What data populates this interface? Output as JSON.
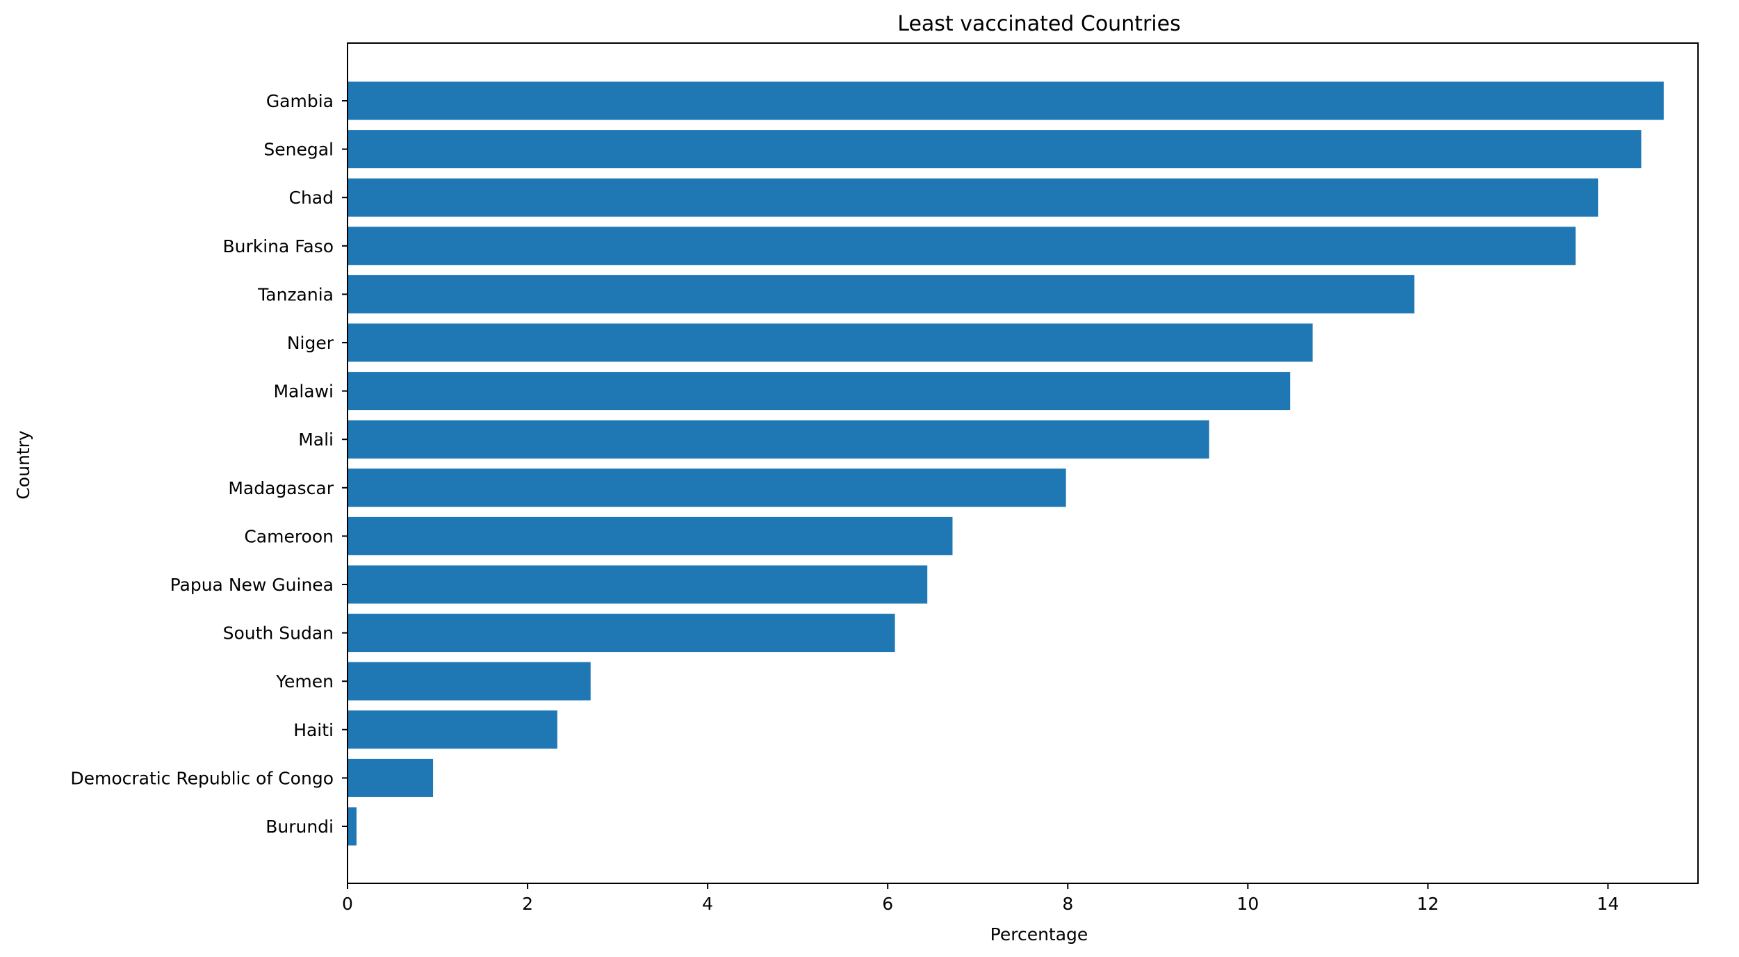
{
  "chart_data": {
    "type": "bar",
    "orientation": "horizontal",
    "title": "Least vaccinated Countries",
    "xlabel": "Percentage",
    "ylabel": "Country",
    "categories": [
      "Gambia",
      "Senegal",
      "Chad",
      "Burkina Faso",
      "Tanzania",
      "Niger",
      "Malawi",
      "Mali",
      "Madagascar",
      "Cameroon",
      "Papua New Guinea",
      "South Sudan",
      "Yemen",
      "Haiti",
      "Democratic Republic of Congo",
      "Burundi"
    ],
    "values": [
      14.62,
      14.37,
      13.89,
      13.64,
      11.85,
      10.72,
      10.47,
      9.57,
      7.98,
      6.72,
      6.44,
      6.08,
      2.7,
      2.33,
      0.95,
      0.1
    ],
    "xlim": [
      0,
      15.0
    ],
    "xticks": [
      0,
      2,
      4,
      6,
      8,
      10,
      12,
      14
    ],
    "grid": false,
    "legend": "none",
    "bar_color": "#1f77b4"
  }
}
